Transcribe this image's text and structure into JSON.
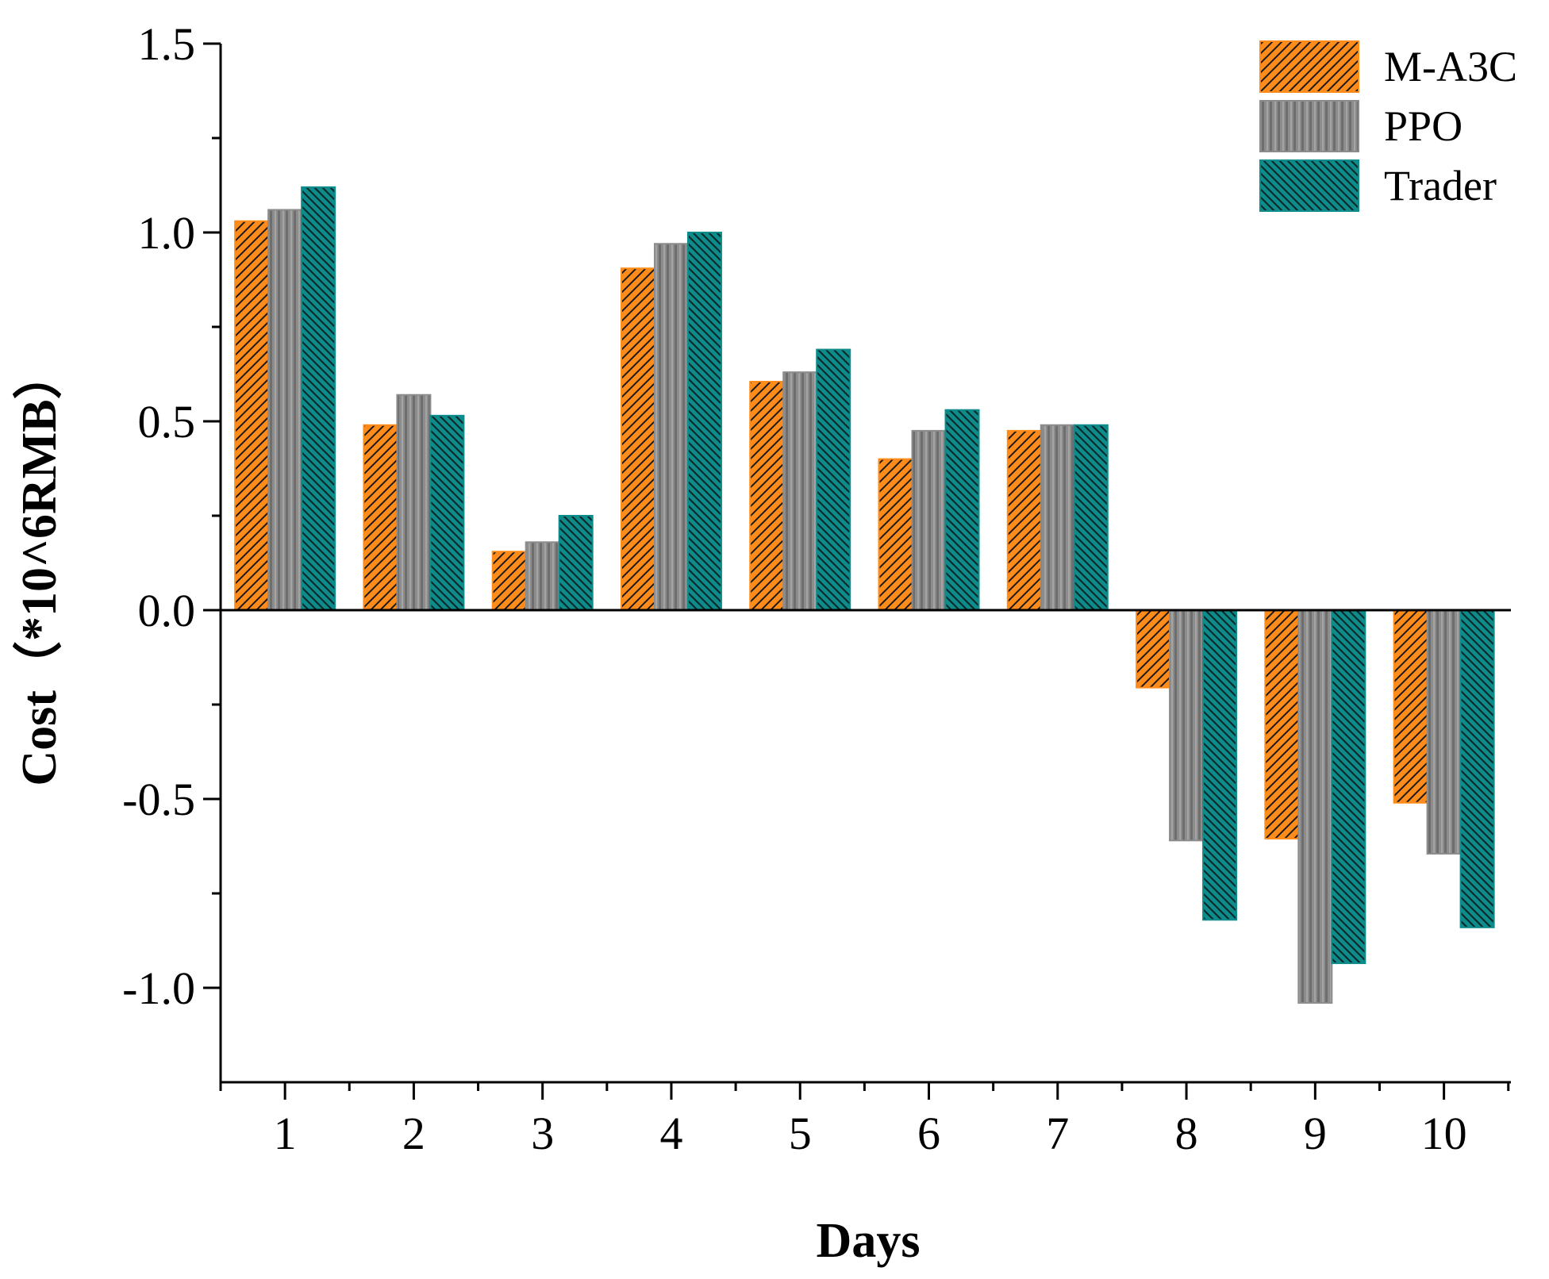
{
  "chart_data": {
    "type": "bar",
    "title": "",
    "xlabel": "Days",
    "ylabel": "Cost（*10^6RMB）",
    "categories": [
      "1",
      "2",
      "3",
      "4",
      "5",
      "6",
      "7",
      "8",
      "9",
      "10"
    ],
    "ylim": [
      -1.25,
      1.5
    ],
    "yticks": [
      "1.5",
      "1.0",
      "0.5",
      "0.0",
      "-0.5",
      "-1.0"
    ],
    "ytick_values": [
      1.5,
      1.0,
      0.5,
      0.0,
      -0.5,
      -1.0
    ],
    "grid": false,
    "legend_position": "top-right",
    "series": [
      {
        "name": "M-A3C",
        "color": "#FF8C1A",
        "pattern": "hatch-forward",
        "values": [
          1.03,
          0.49,
          0.155,
          0.905,
          0.605,
          0.4,
          0.475,
          -0.205,
          -0.605,
          -0.51
        ]
      },
      {
        "name": "PPO",
        "color": "#8C8C8C",
        "pattern": "vertical-stripes",
        "values": [
          1.06,
          0.57,
          0.18,
          0.97,
          0.63,
          0.475,
          0.49,
          -0.61,
          -1.04,
          -0.645
        ]
      },
      {
        "name": "Trader",
        "color": "#0E8C8C",
        "pattern": "hatch-backward",
        "values": [
          1.12,
          0.515,
          0.25,
          1.0,
          0.69,
          0.53,
          0.49,
          -0.82,
          -0.935,
          -0.84
        ]
      }
    ]
  }
}
